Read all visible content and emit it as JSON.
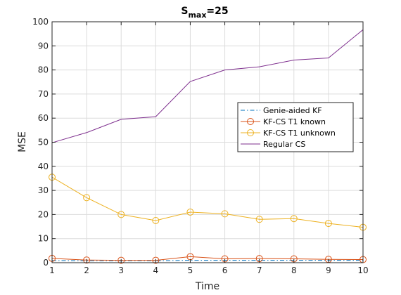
{
  "chart_data": {
    "type": "line",
    "title": "S",
    "title_subscript": "max",
    "title_suffix": "=25",
    "xlabel": "Time",
    "ylabel": "MSE",
    "xlim": [
      1,
      10
    ],
    "ylim": [
      0,
      100
    ],
    "xticks": [
      1,
      2,
      3,
      4,
      5,
      6,
      7,
      8,
      9,
      10
    ],
    "yticks": [
      0,
      10,
      20,
      30,
      40,
      50,
      60,
      70,
      80,
      90,
      100
    ],
    "grid": true,
    "legend_position": "center-right",
    "x": [
      1,
      2,
      3,
      4,
      5,
      6,
      7,
      8,
      9,
      10
    ],
    "series": [
      {
        "name": "Genie-aided KF",
        "color": "#0072BD",
        "style": "dash-dot",
        "marker": "none",
        "values": [
          0.9,
          0.8,
          0.8,
          0.8,
          1.0,
          1.0,
          1.0,
          1.0,
          1.0,
          1.0
        ]
      },
      {
        "name": "KF-CS T1 known",
        "color": "#D95319",
        "style": "solid",
        "marker": "circle",
        "values": [
          1.8,
          1.1,
          1.0,
          1.0,
          2.5,
          1.6,
          1.7,
          1.6,
          1.4,
          1.3
        ]
      },
      {
        "name": "KF-CS T1 unknown",
        "color": "#EDB120",
        "style": "solid",
        "marker": "circle",
        "values": [
          35.5,
          27.0,
          20.0,
          17.5,
          21.0,
          20.3,
          18.0,
          18.3,
          16.3,
          14.7
        ]
      },
      {
        "name": "Regular CS",
        "color": "#7E2F8E",
        "style": "solid",
        "marker": "none",
        "values": [
          49.8,
          54.0,
          59.5,
          60.6,
          75.2,
          80.0,
          81.3,
          84.1,
          85.0,
          96.7
        ]
      }
    ]
  }
}
